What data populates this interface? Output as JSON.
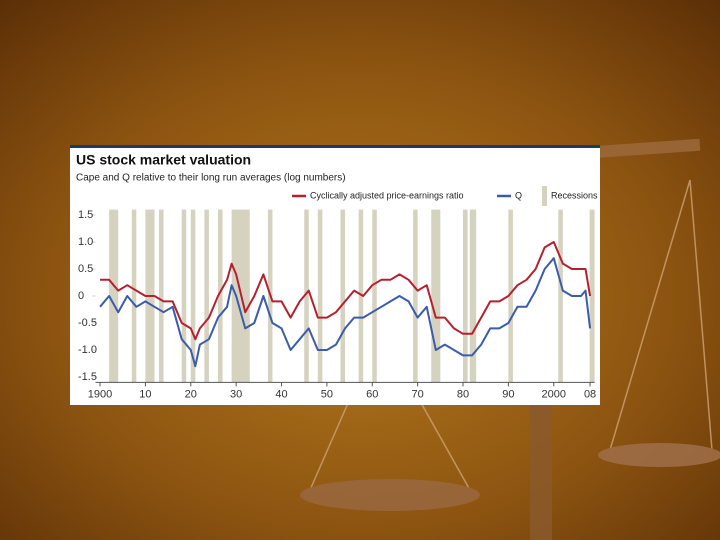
{
  "chart_data": {
    "type": "line",
    "title": "US stock market valuation",
    "subtitle": "Cape and Q relative to their long run averages (log numbers)",
    "x": [
      1900,
      1902,
      1904,
      1906,
      1908,
      1910,
      1912,
      1914,
      1916,
      1918,
      1920,
      1921,
      1922,
      1924,
      1926,
      1928,
      1929,
      1930,
      1932,
      1934,
      1936,
      1938,
      1940,
      1942,
      1944,
      1946,
      1948,
      1950,
      1952,
      1954,
      1956,
      1958,
      1960,
      1962,
      1964,
      1966,
      1968,
      1970,
      1972,
      1974,
      1976,
      1978,
      1980,
      1982,
      1984,
      1986,
      1988,
      1990,
      1992,
      1994,
      1996,
      1998,
      2000,
      2002,
      2004,
      2006,
      2007,
      2008
    ],
    "series": [
      {
        "name": "Cyclically adjusted price-earnings ratio",
        "color": "#b5202e",
        "values": [
          0.3,
          0.3,
          0.1,
          0.2,
          0.1,
          0.0,
          0.0,
          -0.1,
          -0.1,
          -0.5,
          -0.6,
          -0.8,
          -0.6,
          -0.4,
          0.0,
          0.3,
          0.6,
          0.4,
          -0.3,
          0.0,
          0.4,
          -0.1,
          -0.1,
          -0.4,
          -0.1,
          0.1,
          -0.4,
          -0.4,
          -0.3,
          -0.1,
          0.1,
          0.0,
          0.2,
          0.3,
          0.3,
          0.4,
          0.3,
          0.1,
          0.2,
          -0.4,
          -0.4,
          -0.6,
          -0.7,
          -0.7,
          -0.4,
          -0.1,
          -0.1,
          0.0,
          0.2,
          0.3,
          0.5,
          0.9,
          1.0,
          0.6,
          0.5,
          0.5,
          0.5,
          0.0
        ]
      },
      {
        "name": "Q",
        "color": "#3b5ca8",
        "values": [
          -0.2,
          0.0,
          -0.3,
          0.0,
          -0.2,
          -0.1,
          -0.2,
          -0.3,
          -0.2,
          -0.8,
          -1.0,
          -1.3,
          -0.9,
          -0.8,
          -0.4,
          -0.2,
          0.2,
          0.0,
          -0.6,
          -0.5,
          0.0,
          -0.5,
          -0.6,
          -1.0,
          -0.8,
          -0.6,
          -1.0,
          -1.0,
          -0.9,
          -0.6,
          -0.4,
          -0.4,
          -0.3,
          -0.2,
          -0.1,
          0.0,
          -0.1,
          -0.4,
          -0.2,
          -1.0,
          -0.9,
          -1.0,
          -1.1,
          -1.1,
          -0.9,
          -0.6,
          -0.6,
          -0.5,
          -0.2,
          -0.2,
          0.1,
          0.5,
          0.7,
          0.1,
          0.0,
          0.0,
          0.1,
          -0.6
        ]
      }
    ],
    "recessions": {
      "name": "Recessions",
      "color": "#d6d2c0",
      "periods": [
        [
          1902,
          1904
        ],
        [
          1907,
          1908
        ],
        [
          1910,
          1912
        ],
        [
          1913,
          1914
        ],
        [
          1918,
          1919
        ],
        [
          1920,
          1921
        ],
        [
          1923,
          1924
        ],
        [
          1926,
          1927
        ],
        [
          1929,
          1933
        ],
        [
          1937,
          1938
        ],
        [
          1945,
          1946
        ],
        [
          1948,
          1949
        ],
        [
          1953,
          1954
        ],
        [
          1957,
          1958
        ],
        [
          1960,
          1961
        ],
        [
          1969,
          1970
        ],
        [
          1973,
          1975
        ],
        [
          1980,
          1981
        ],
        [
          1981.5,
          1982.9
        ],
        [
          1990,
          1991
        ],
        [
          2001,
          2002
        ],
        [
          2007.9,
          2009
        ]
      ]
    },
    "xlim": [
      1899,
      2009
    ],
    "ylim": [
      -1.6,
      1.6
    ],
    "xticks": [
      {
        "value": 1900,
        "label": "1900"
      },
      {
        "value": 1910,
        "label": "10"
      },
      {
        "value": 1920,
        "label": "20"
      },
      {
        "value": 1930,
        "label": "30"
      },
      {
        "value": 1940,
        "label": "40"
      },
      {
        "value": 1950,
        "label": "50"
      },
      {
        "value": 1960,
        "label": "60"
      },
      {
        "value": 1970,
        "label": "70"
      },
      {
        "value": 1980,
        "label": "80"
      },
      {
        "value": 1990,
        "label": "90"
      },
      {
        "value": 2000,
        "label": "2000"
      },
      {
        "value": 2008,
        "label": "08"
      }
    ],
    "yticks": [
      1.5,
      {
        "value": 1,
        "label": "1.0"
      },
      0.5,
      0,
      -0.5,
      {
        "value": -1,
        "label": "-1.0"
      },
      -1.5
    ]
  }
}
